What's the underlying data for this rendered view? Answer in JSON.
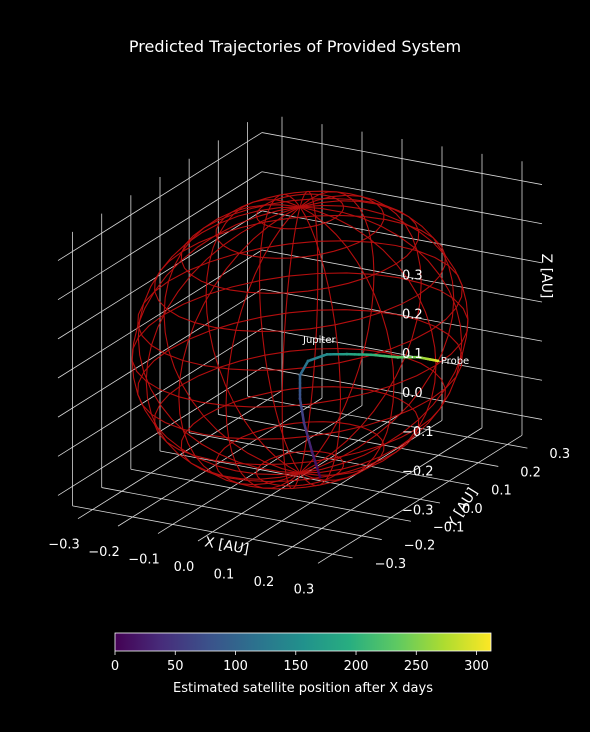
{
  "chart_data": {
    "type": "scatter",
    "title": "Predicted Trajectories of Provided System",
    "xlabel": "X [AU]",
    "ylabel": "Y [AU]",
    "zlabel": "Z [AU]",
    "x_ticks": [
      "−0.3",
      "−0.2",
      "−0.1",
      "0.0",
      "0.1",
      "0.2",
      "0.3"
    ],
    "y_ticks": [
      "−0.3",
      "−0.2",
      "−0.1",
      "0.0",
      "0.1",
      "0.2",
      "0.3"
    ],
    "z_ticks": [
      "−0.3",
      "−0.2",
      "−0.1",
      "0.0",
      "0.1",
      "0.2",
      "0.3"
    ],
    "xlim": [
      -0.35,
      0.35
    ],
    "ylim": [
      -0.35,
      0.35
    ],
    "zlim": [
      -0.35,
      0.35
    ],
    "grid": true,
    "background": "#000000",
    "sphere": {
      "color": "#c81010",
      "radius": 0.34,
      "center": [
        0,
        0,
        0
      ]
    },
    "annotations": [
      {
        "text": "Jupiter",
        "x": 0.0,
        "y": 0.0,
        "z": 0.0
      },
      {
        "text": "Probe",
        "x": 0.33,
        "y": 0.02,
        "z": 0.0
      }
    ],
    "series": [
      {
        "x": [
          0.05,
          0.03,
          0.01,
          0.0,
          0.0,
          0.02,
          0.06,
          0.11,
          0.17,
          0.23,
          0.28,
          0.31,
          0.33
        ],
        "y": [
          0.0,
          0.0,
          0.0,
          0.0,
          0.0,
          0.0,
          0.01,
          0.01,
          0.01,
          0.02,
          0.02,
          0.02,
          0.02
        ],
        "z": [
          -0.34,
          -0.28,
          -0.21,
          -0.15,
          -0.09,
          -0.05,
          -0.03,
          -0.02,
          -0.01,
          -0.01,
          0.0,
          0.0,
          0.0
        ],
        "t": [
          0,
          25,
          50,
          75,
          100,
          125,
          150,
          175,
          200,
          225,
          250,
          275,
          300
        ]
      }
    ],
    "colorbar": {
      "label": "Estimated satellite position after X days",
      "ticks": [
        "0",
        "50",
        "100",
        "150",
        "200",
        "250",
        "300"
      ],
      "range": [
        0,
        312
      ],
      "colormap": [
        "#440154",
        "#472d7b",
        "#3b528b",
        "#2c728e",
        "#21918c",
        "#28ae80",
        "#5ec962",
        "#addc30",
        "#fde725"
      ]
    }
  }
}
